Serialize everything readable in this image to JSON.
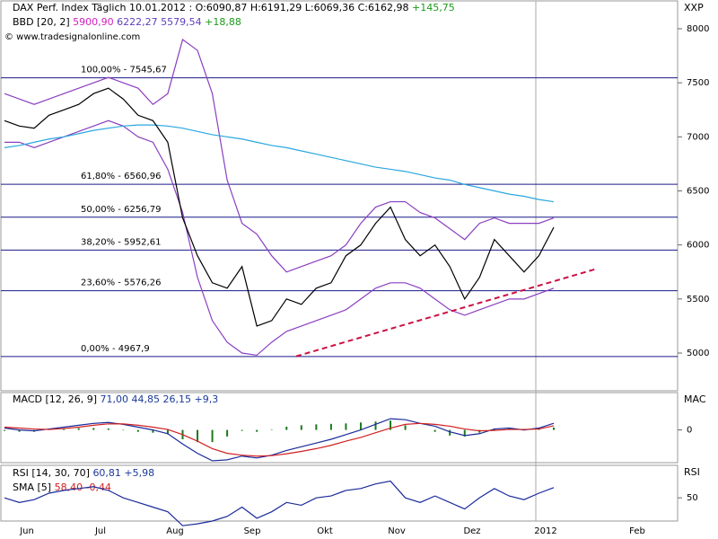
{
  "chart_data": {
    "type": "line",
    "title": "DAX Perf. Index Täglich 10.01.2012 : O:6090,87 H:6191,29 L:6069,36 C:6162,98",
    "title_change": "+145,75",
    "indicator_label": "BBD [20, 2]",
    "indicator_values": [
      "5900,90",
      "6222,27 5579,54"
    ],
    "indicator_change": "+18,88",
    "source": "© www.tradesignalonline.com",
    "axis_label": "XXP",
    "ylim": [
      4651,
      8266
    ],
    "yticks": [
      5000,
      5500,
      6000,
      6500,
      7000,
      7500,
      8000
    ],
    "xticks": [
      "Jun",
      "Jul",
      "Aug",
      "Sep",
      "Okt",
      "Nov",
      "Dez",
      "2012",
      "Feb"
    ],
    "series": [
      {
        "color": "#000000",
        "values": [
          7150,
          7100,
          7080,
          7200,
          7250,
          7300,
          7400,
          7450,
          7350,
          7200,
          7150,
          6950,
          6250,
          5900,
          5650,
          5600,
          5800,
          5250,
          5300,
          5500,
          5450,
          5600,
          5650,
          5900,
          6000,
          6200,
          6350,
          6050,
          5900,
          6000,
          5800,
          5500,
          5700,
          6050,
          5900,
          5750,
          5900,
          6163
        ]
      },
      {
        "color": "#2aa7e0",
        "values": [
          6900,
          6920,
          6950,
          6980,
          7000,
          7030,
          7060,
          7080,
          7100,
          7110,
          7110,
          7100,
          7080,
          7050,
          7020,
          7000,
          6980,
          6950,
          6920,
          6900,
          6870,
          6840,
          6810,
          6780,
          6750,
          6720,
          6700,
          6680,
          6650,
          6620,
          6600,
          6560,
          6530,
          6500,
          6470,
          6450,
          6420,
          6400
        ]
      },
      {
        "color": "#8a3fc0",
        "values": [
          7400,
          7350,
          7300,
          7350,
          7400,
          7450,
          7500,
          7550,
          7500,
          7450,
          7300,
          7400,
          7900,
          7800,
          7400,
          6600,
          6200,
          6100,
          5900,
          5750,
          5800,
          5850,
          5900,
          6000,
          6200,
          6350,
          6400,
          6400,
          6300,
          6250,
          6150,
          6050,
          6200,
          6250,
          6200,
          6200,
          6200,
          6250
        ]
      },
      {
        "color": "#8a3fc0",
        "values": [
          6950,
          6950,
          6900,
          6950,
          7000,
          7050,
          7100,
          7150,
          7100,
          7000,
          6950,
          6700,
          6300,
          5700,
          5300,
          5100,
          5000,
          4980,
          5100,
          5200,
          5250,
          5300,
          5350,
          5400,
          5500,
          5600,
          5650,
          5650,
          5600,
          5500,
          5400,
          5350,
          5400,
          5450,
          5500,
          5500,
          5550,
          5600
        ]
      }
    ],
    "trendline": {
      "color": "#cc1144",
      "values": [
        4970,
        5780
      ]
    },
    "fib_levels": [
      {
        "value": 7545.67,
        "label": "100,00% - 7545,67"
      },
      {
        "value": 6560.96,
        "label": "61,80% - 6560,96"
      },
      {
        "value": 6256.79,
        "label": "50,00% - 6256,79"
      },
      {
        "value": 5952.61,
        "label": "38,20% - 5952,61"
      },
      {
        "value": 5576.26,
        "label": "23,60% - 5576,26"
      },
      {
        "value": 4967.9,
        "label": "0,00% - 4967,9"
      }
    ],
    "macd": {
      "label": "MACD [12, 26, 9]",
      "values_label": "71,00 44,85 26,15 +9,3",
      "axis_label": "MAC",
      "ylim": [
        -350,
        400
      ],
      "yticks": [
        0
      ],
      "macd": [
        20,
        0,
        -10,
        10,
        30,
        50,
        70,
        80,
        60,
        30,
        0,
        -40,
        -150,
        -250,
        -330,
        -320,
        -280,
        -300,
        -270,
        -220,
        -180,
        -140,
        -100,
        -50,
        0,
        60,
        120,
        110,
        70,
        40,
        -20,
        -60,
        -40,
        10,
        20,
        0,
        20,
        71
      ],
      "signal": [
        30,
        20,
        10,
        5,
        15,
        30,
        50,
        65,
        65,
        50,
        30,
        5,
        -50,
        -120,
        -200,
        -250,
        -270,
        -280,
        -275,
        -255,
        -230,
        -200,
        -165,
        -120,
        -80,
        -30,
        20,
        60,
        70,
        60,
        40,
        10,
        -10,
        -5,
        5,
        5,
        10,
        45
      ],
      "histogram": [
        -10,
        -20,
        -20,
        5,
        15,
        20,
        20,
        15,
        -5,
        -20,
        -30,
        -45,
        -100,
        -130,
        -130,
        -70,
        -10,
        -20,
        5,
        35,
        50,
        60,
        65,
        70,
        80,
        90,
        100,
        50,
        0,
        -20,
        -60,
        -70,
        -30,
        15,
        15,
        -5,
        10,
        26
      ]
    },
    "rsi": {
      "label": "RSI [14, 30, 70]",
      "values_label": "60,81 +5,98",
      "sma_label": "SMA [5]",
      "sma_values_label": "58,40 -0,44",
      "axis_label": "RSI",
      "ylim": [
        25,
        85
      ],
      "yticks": [
        50
      ],
      "values": [
        50,
        45,
        48,
        55,
        58,
        60,
        62,
        58,
        50,
        45,
        40,
        35,
        20,
        22,
        25,
        30,
        40,
        28,
        35,
        45,
        42,
        50,
        52,
        58,
        60,
        65,
        68,
        50,
        45,
        52,
        45,
        38,
        50,
        60,
        52,
        48,
        55,
        61
      ]
    }
  }
}
